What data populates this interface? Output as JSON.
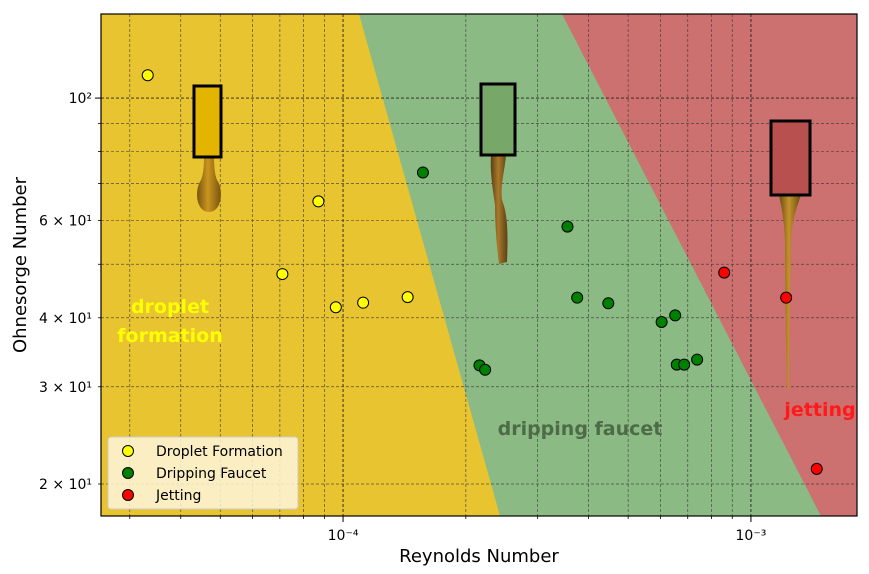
{
  "chart_data": {
    "type": "scatter",
    "title": "",
    "xlabel": "Reynolds Number",
    "ylabel": "Ohnesorge Number",
    "xscale": "log",
    "yscale": "log",
    "xlim": [
      2.55e-05,
      0.00182
    ],
    "ylim": [
      17.5,
      142
    ],
    "grid": true,
    "x_tick_labels": [
      {
        "value": 0.0001,
        "label": "10⁻⁴"
      },
      {
        "value": 0.001,
        "label": "10⁻³"
      }
    ],
    "y_tick_labels": [
      {
        "value": 20,
        "label": "2 × 10¹"
      },
      {
        "value": 30,
        "label": "3 × 10¹"
      },
      {
        "value": 40,
        "label": "4 × 10¹"
      },
      {
        "value": 60,
        "label": "6 × 10¹"
      },
      {
        "value": 100,
        "label": "10²"
      }
    ],
    "legend_position": "lower-left",
    "series": [
      {
        "name": "Droplet Formation",
        "color": "#ffff00",
        "points": [
          [
            3.32e-05,
            110
          ],
          [
            7.1e-05,
            48.0
          ],
          [
            8.7e-05,
            65.0
          ],
          [
            9.6e-05,
            41.8
          ],
          [
            0.000112,
            42.6
          ],
          [
            0.000144,
            43.6
          ]
        ]
      },
      {
        "name": "Dripping Faucet",
        "color": "#008000",
        "points": [
          [
            0.000157,
            73.3
          ],
          [
            0.000216,
            32.8
          ],
          [
            0.000223,
            32.2
          ],
          [
            0.000355,
            58.5
          ],
          [
            0.000375,
            43.5
          ],
          [
            0.000447,
            42.5
          ],
          [
            0.000604,
            39.3
          ],
          [
            0.000652,
            40.4
          ],
          [
            0.000658,
            32.9
          ],
          [
            0.000686,
            32.9
          ],
          [
            0.000738,
            33.6
          ]
        ]
      },
      {
        "name": "Jetting",
        "color": "#ff0000",
        "points": [
          [
            0.00086,
            48.3
          ],
          [
            0.00122,
            43.5
          ],
          [
            0.00145,
            21.3
          ]
        ]
      }
    ],
    "regions": [
      {
        "name": "droplet formation",
        "color": "#e8c430"
      },
      {
        "name": "dripping faucet",
        "color": "#8cba84"
      },
      {
        "name": "jetting",
        "color": "#cc7070"
      }
    ],
    "annotations": [
      {
        "text": "droplet",
        "color": "#ffff00"
      },
      {
        "text": "formation",
        "color": "#ffff00"
      },
      {
        "text": "dripping faucet",
        "color": "#4e6b47"
      },
      {
        "text": "jetting",
        "color": "#ff1a1a"
      }
    ]
  }
}
